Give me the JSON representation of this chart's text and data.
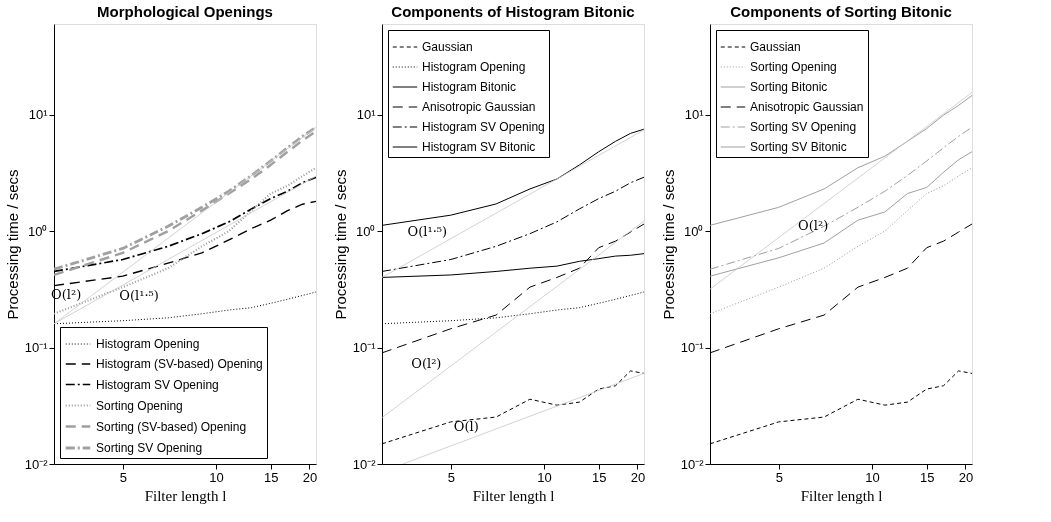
{
  "chart_data": [
    {
      "type": "line",
      "title": "Morphological Openings",
      "xlabel": "Filter length l",
      "ylabel": "Processing time / secs",
      "log": "xy",
      "grid": false,
      "legend": "bottom left",
      "xlim": [
        3,
        21
      ],
      "ylim": [
        0.01,
        60
      ],
      "xticks": [
        5,
        10,
        15,
        20
      ],
      "yticks": [
        {
          "value": 0.01,
          "label": "10⁻²"
        },
        {
          "value": 0.1,
          "label": "10⁻¹"
        },
        {
          "value": 1,
          "label": "10⁰"
        },
        {
          "value": 10,
          "label": "10¹"
        }
      ],
      "x": [
        3,
        5,
        7,
        9,
        11,
        13,
        15,
        17,
        19,
        21
      ],
      "series": [
        {
          "name": "Histogram Opening",
          "color": "#000000",
          "line_style": "dotted",
          "values": [
            0.16,
            0.17,
            0.18,
            0.195,
            0.21,
            0.22,
            0.24,
            0.26,
            0.28,
            0.3
          ]
        },
        {
          "name": "Histogram (SV-based) Opening",
          "color": "#000000",
          "line_style": "longdashed",
          "values": [
            0.34,
            0.41,
            0.53,
            0.65,
            0.84,
            1.05,
            1.24,
            1.5,
            1.7,
            1.8
          ]
        },
        {
          "name": "Histogram SV Opening",
          "color": "#000000",
          "line_style": "dashdot",
          "values": [
            0.45,
            0.57,
            0.74,
            0.95,
            1.2,
            1.55,
            1.9,
            2.2,
            2.6,
            2.9
          ]
        },
        {
          "name": "Sorting Opening",
          "color": "#999999",
          "line_style": "dotted",
          "values": [
            0.195,
            0.33,
            0.48,
            0.74,
            1.0,
            1.5,
            2.1,
            2.45,
            2.97,
            3.5
          ]
        },
        {
          "name": "Sorting (SV-based) Opening",
          "color": "#a0a0a0",
          "line_style": "longdashed",
          "values": [
            0.42,
            0.65,
            1.0,
            1.5,
            2.1,
            2.8,
            3.7,
            4.8,
            6.0,
            7.2
          ]
        },
        {
          "name": "Sorting SV Opening",
          "color": "#a0a0a0",
          "line_style": "dashdot",
          "values": [
            0.47,
            0.71,
            1.1,
            1.6,
            2.2,
            3.0,
            4.0,
            5.2,
            6.5,
            7.8
          ]
        },
        {
          "type": "line",
          "color": "#c8c8c8",
          "line_style": "solid",
          "x": [
            3,
            21
          ],
          "values": [
            0.16,
            7.8
          ]
        },
        {
          "type": "line",
          "color": "#c8c8c8",
          "line_style": "solid",
          "x": [
            3,
            21
          ],
          "values": [
            0.16,
            2.96
          ]
        }
      ],
      "annotations": [
        {
          "text": "O(l²)",
          "x": 3.7,
          "y": 0.2434
        },
        {
          "text": "O(l¹·⁵)",
          "x": 4.8,
          "y": 0.324
        }
      ]
    },
    {
      "type": "line",
      "title": "Components of Histogram Bitonic",
      "xlabel": "Filter length l",
      "ylabel": "Processing time / secs",
      "log": "xy",
      "grid": false,
      "legend": "top left",
      "xlim": [
        3,
        21
      ],
      "ylim": [
        0.01,
        60
      ],
      "xticks": [
        5,
        10,
        15,
        20
      ],
      "yticks": [
        {
          "value": 0.01,
          "label": "10⁻²"
        },
        {
          "value": 0.1,
          "label": "10⁻¹"
        },
        {
          "value": 1,
          "label": "10⁰"
        },
        {
          "value": 10,
          "label": "10¹"
        }
      ],
      "x": [
        3,
        5,
        7,
        9,
        11,
        13,
        15,
        17,
        19,
        21
      ],
      "series": [
        {
          "name": "Gaussian",
          "color": "#000000",
          "line_style": "dashed",
          "values": [
            0.0149,
            0.023,
            0.0253,
            0.036,
            0.032,
            0.034,
            0.044,
            0.047,
            0.063,
            0.06
          ]
        },
        {
          "name": "Histogram Opening",
          "color": "#000000",
          "line_style": "dotted",
          "values": [
            0.16,
            0.17,
            0.18,
            0.195,
            0.21,
            0.22,
            0.24,
            0.26,
            0.28,
            0.3
          ]
        },
        {
          "name": "Histogram Bitonic",
          "color": "#000000",
          "line_style": "solid",
          "values": [
            0.4,
            0.42,
            0.45,
            0.48,
            0.5,
            0.55,
            0.58,
            0.61,
            0.62,
            0.64
          ]
        },
        {
          "name": "Anisotropic Gaussian",
          "color": "#000000",
          "line_style": "longdashed",
          "values": [
            0.09,
            0.145,
            0.19,
            0.33,
            0.4,
            0.48,
            0.72,
            0.82,
            0.98,
            1.15
          ]
        },
        {
          "name": "Histogram SV Opening",
          "color": "#000000",
          "line_style": "dashdot",
          "values": [
            0.45,
            0.57,
            0.74,
            0.95,
            1.2,
            1.55,
            1.9,
            2.2,
            2.6,
            2.9
          ]
        },
        {
          "name": "Histogram SV Bitonic",
          "color": "#000000",
          "line_style": "solid",
          "values": [
            1.12,
            1.37,
            1.71,
            2.3,
            2.8,
            3.7,
            4.8,
            5.9,
            6.9,
            7.5
          ]
        },
        {
          "type": "line",
          "color": "#c8c8c8",
          "line_style": "solid",
          "x": [
            3,
            21
          ],
          "values": [
            0.4,
            7.4
          ]
        },
        {
          "type": "line",
          "color": "#c8c8c8",
          "line_style": "solid",
          "x": [
            3,
            21
          ],
          "values": [
            0.025,
            1.22
          ]
        },
        {
          "type": "line",
          "color": "#c8c8c8",
          "line_style": "solid",
          "x": [
            3.5,
            21
          ],
          "values": [
            0.01,
            0.06
          ]
        }
      ],
      "annotations": [
        {
          "text": "O(l¹·⁵)",
          "x": 4.9,
          "y": 0.835
        },
        {
          "text": "O(l²)",
          "x": 4.7,
          "y": 0.0614
        },
        {
          "text": "O(l)",
          "x": 6.2,
          "y": 0.0177
        }
      ]
    },
    {
      "type": "line",
      "title": "Components of Sorting Bitonic",
      "xlabel": "Filter length l",
      "ylabel": "Processing time / secs",
      "log": "xy",
      "grid": false,
      "legend": "top left",
      "xlim": [
        3,
        21
      ],
      "ylim": [
        0.01,
        60
      ],
      "xticks": [
        5,
        10,
        15,
        20
      ],
      "yticks": [
        {
          "value": 0.01,
          "label": "10⁻²"
        },
        {
          "value": 0.1,
          "label": "10⁻¹"
        },
        {
          "value": 1,
          "label": "10⁰"
        },
        {
          "value": 10,
          "label": "10¹"
        }
      ],
      "x": [
        3,
        5,
        7,
        9,
        11,
        13,
        15,
        17,
        19,
        21
      ],
      "series": [
        {
          "name": "Gaussian",
          "color": "#000000",
          "line_style": "dashed",
          "values": [
            0.0149,
            0.023,
            0.0253,
            0.036,
            0.032,
            0.034,
            0.044,
            0.047,
            0.063,
            0.06
          ]
        },
        {
          "name": "Sorting Opening",
          "color": "#999999",
          "line_style": "dotted",
          "values": [
            0.195,
            0.33,
            0.48,
            0.74,
            1.0,
            1.5,
            2.1,
            2.45,
            2.97,
            3.5
          ]
        },
        {
          "name": "Sorting Bitonic",
          "color": "#a0a0a0",
          "line_style": "solid",
          "values": [
            0.41,
            0.59,
            0.79,
            1.24,
            1.46,
            2.1,
            2.37,
            3.2,
            4.1,
            4.8
          ]
        },
        {
          "name": "Anisotropic Gaussian",
          "color": "#000000",
          "line_style": "longdashed",
          "values": [
            0.09,
            0.145,
            0.19,
            0.33,
            0.4,
            0.48,
            0.72,
            0.82,
            0.98,
            1.15
          ]
        },
        {
          "name": "Sorting SV Opening",
          "color": "#a0a0a0",
          "line_style": "dashdot",
          "values": [
            0.47,
            0.71,
            1.1,
            1.6,
            2.2,
            3.0,
            4.0,
            5.2,
            6.5,
            7.8
          ]
        },
        {
          "name": "Sorting SV Bitonic",
          "color": "#a0a0a0",
          "line_style": "solid",
          "values": [
            1.12,
            1.6,
            2.3,
            3.5,
            4.4,
            5.9,
            7.6,
            9.9,
            12,
            14.6
          ]
        },
        {
          "type": "line",
          "color": "#c8c8c8",
          "line_style": "solid",
          "x": [
            3,
            21
          ],
          "values": [
            0.317,
            15.5
          ]
        }
      ],
      "annotations": [
        {
          "text": "O(l²)",
          "x": 5.6,
          "y": 1.1
        }
      ]
    }
  ]
}
